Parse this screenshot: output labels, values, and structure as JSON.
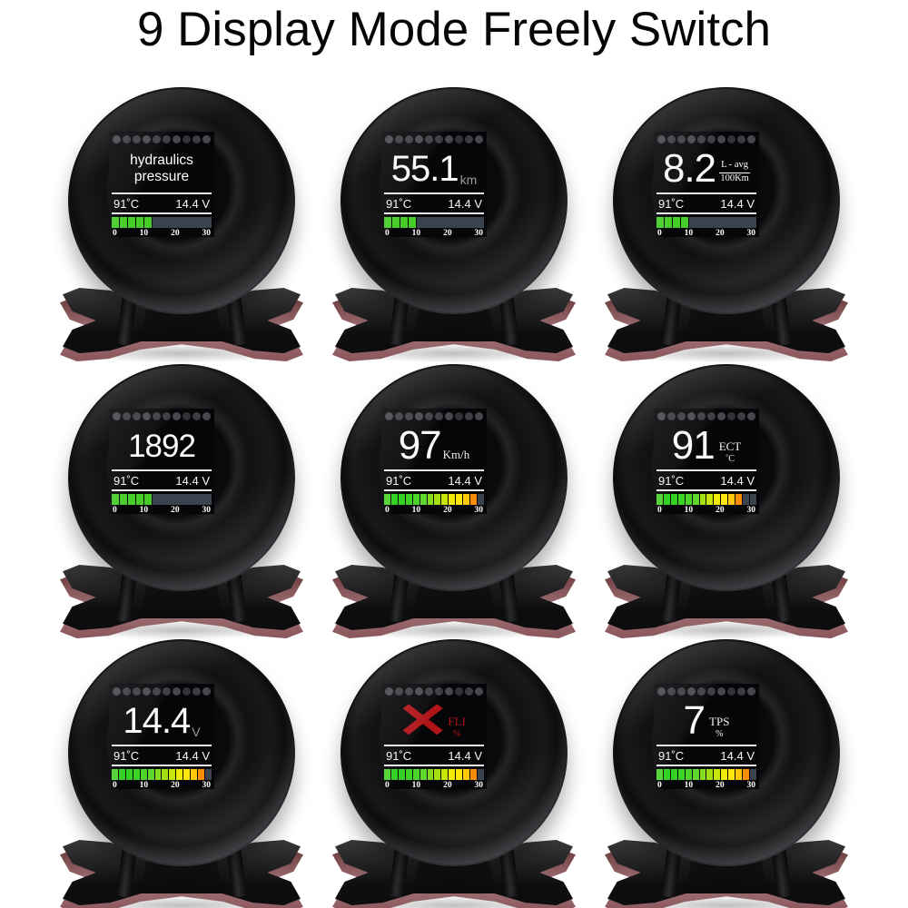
{
  "title": "9 Display Mode Freely Switch",
  "shared": {
    "temp": "91˚C",
    "volt": "14.4 V",
    "scale": [
      "0",
      "10",
      "20",
      "30"
    ],
    "led_dots": 10,
    "bar_total": 14
  },
  "colors": {
    "accent_green": "#47cd2a",
    "bar_rest": "#39434e",
    "error_red": "#b01419",
    "dot": "#3c3c44",
    "gradient": [
      "#4fd42e",
      "#2fd11f",
      "#33d121",
      "#3cd324",
      "#4bd529",
      "#60d72d",
      "#82dc1f",
      "#a3e013",
      "#cae60b",
      "#f2ea08",
      "#ffe70d",
      "#ffc90a",
      "#ff8c06"
    ]
  },
  "gauges": [
    {
      "name": "hydraulics-pressure",
      "mode": "text",
      "lines": [
        "hydraulics",
        "pressure"
      ],
      "bar": {
        "style": "green",
        "filled": 5
      }
    },
    {
      "name": "distance-km",
      "mode": "number",
      "value": "55.1",
      "unit": "km",
      "unit_style": "muted",
      "bar": {
        "style": "green",
        "filled": 4
      }
    },
    {
      "name": "fuel-avg-consumption",
      "mode": "frac",
      "value": "8.2",
      "unit_top": "L - avg",
      "unit_bottom": "100Km",
      "bar": {
        "style": "green",
        "filled": 4
      }
    },
    {
      "name": "engine-rpm",
      "mode": "number",
      "value": "1892",
      "bar": {
        "style": "green",
        "filled": 5
      }
    },
    {
      "name": "speed",
      "mode": "number",
      "value": "97",
      "unit": "Km/h",
      "unit_style": "serif",
      "bar": {
        "style": "gradient",
        "filled": 13
      }
    },
    {
      "name": "coolant-temp-ect",
      "mode": "stack",
      "value": "91",
      "unit_top": "ECT",
      "unit_bottom": "˚C",
      "bar": {
        "style": "gradient",
        "filled": 12
      }
    },
    {
      "name": "battery-voltage",
      "mode": "number",
      "value": "14.4",
      "unit": "V",
      "unit_style": "muted",
      "bar": {
        "style": "gradient",
        "filled": 13
      }
    },
    {
      "name": "fuel-level-error",
      "mode": "error",
      "value": "✕",
      "unit_top": "FLI",
      "unit_bottom": "%",
      "bar": {
        "style": "gradient",
        "filled": 13
      }
    },
    {
      "name": "throttle-position-tps",
      "mode": "stack",
      "value": "7",
      "unit_top": "TPS",
      "unit_bottom": "%",
      "bar": {
        "style": "gradient",
        "filled": 13
      }
    }
  ]
}
